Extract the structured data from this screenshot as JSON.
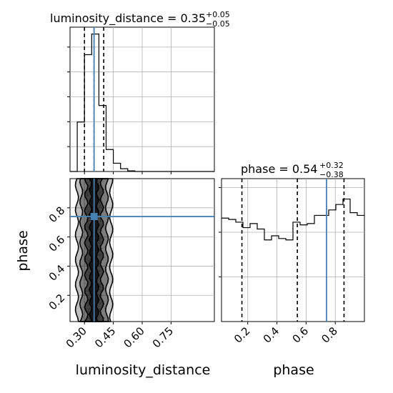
{
  "colors": {
    "truth": "#4682b4",
    "line": "#000000",
    "grid": "#b0b0b0",
    "scatter": "#9a9a9a",
    "contour_fill": "#000000"
  },
  "chart_data": [
    {
      "type": "histogram",
      "panel": "luminosity_distance-1d",
      "title_text": "luminosity_distance = 0.35",
      "title_sup": "+0.05",
      "title_sub": "−0.05",
      "xlim": [
        0.225,
        0.975
      ],
      "bins": [
        0.225,
        0.2625,
        0.3,
        0.3375,
        0.375,
        0.4125,
        0.45,
        0.4875,
        0.525,
        0.5625,
        0.6,
        0.6375,
        0.675,
        0.7125,
        0.75,
        0.7875,
        0.825,
        0.8625,
        0.9,
        0.9375,
        0.975
      ],
      "counts": [
        0,
        0.36,
        0.85,
        1.0,
        0.48,
        0.16,
        0.06,
        0.02,
        0.005,
        0,
        0,
        0,
        0,
        0,
        0,
        0,
        0,
        0,
        0,
        0
      ],
      "ylim": [
        0,
        1.05
      ],
      "quantiles": [
        0.3,
        0.35,
        0.4
      ],
      "truth": 0.35,
      "yticks_count": 5,
      "grid": true
    },
    {
      "type": "scatter",
      "panel": "luminosity_distance-vs-phase-2d",
      "xlabel": "luminosity_distance",
      "ylabel": "phase",
      "xlim": [
        0.225,
        0.975
      ],
      "ylim": [
        0.02,
        1.0
      ],
      "xticks": [
        "0.30",
        "0.45",
        "0.60",
        "0.75"
      ],
      "xtick_values": [
        0.3,
        0.45,
        0.6,
        0.75
      ],
      "yticks": [
        "0.2",
        "0.4",
        "0.6",
        "0.8"
      ],
      "ytick_values": [
        0.2,
        0.4,
        0.6,
        0.8
      ],
      "truth": {
        "x": 0.35,
        "y": 0.74
      },
      "contour_band_x": [
        0.28,
        0.42
      ],
      "grid": true
    },
    {
      "type": "histogram",
      "panel": "phase-1d",
      "title_text": "phase = 0.54",
      "title_sup": "+0.32",
      "title_sub": "−0.38",
      "xlabel": "phase",
      "xlim": [
        0.02,
        1.0
      ],
      "bins": [
        0.02,
        0.069,
        0.118,
        0.167,
        0.216,
        0.265,
        0.314,
        0.363,
        0.412,
        0.461,
        0.51,
        0.559,
        0.608,
        0.657,
        0.706,
        0.755,
        0.804,
        0.853,
        0.902,
        0.951,
        1.0
      ],
      "counts": [
        0.76,
        0.75,
        0.73,
        0.69,
        0.72,
        0.68,
        0.6,
        0.63,
        0.61,
        0.6,
        0.73,
        0.71,
        0.72,
        0.78,
        0.78,
        0.82,
        0.86,
        0.9,
        0.8,
        0.78
      ],
      "ylim": [
        0,
        1.05
      ],
      "quantiles": [
        0.16,
        0.54,
        0.86
      ],
      "truth": 0.74,
      "xticks": [
        "0.2",
        "0.4",
        "0.6",
        "0.8"
      ],
      "xtick_values": [
        0.2,
        0.4,
        0.6,
        0.8
      ],
      "yticks_count": 3,
      "grid": true
    }
  ]
}
